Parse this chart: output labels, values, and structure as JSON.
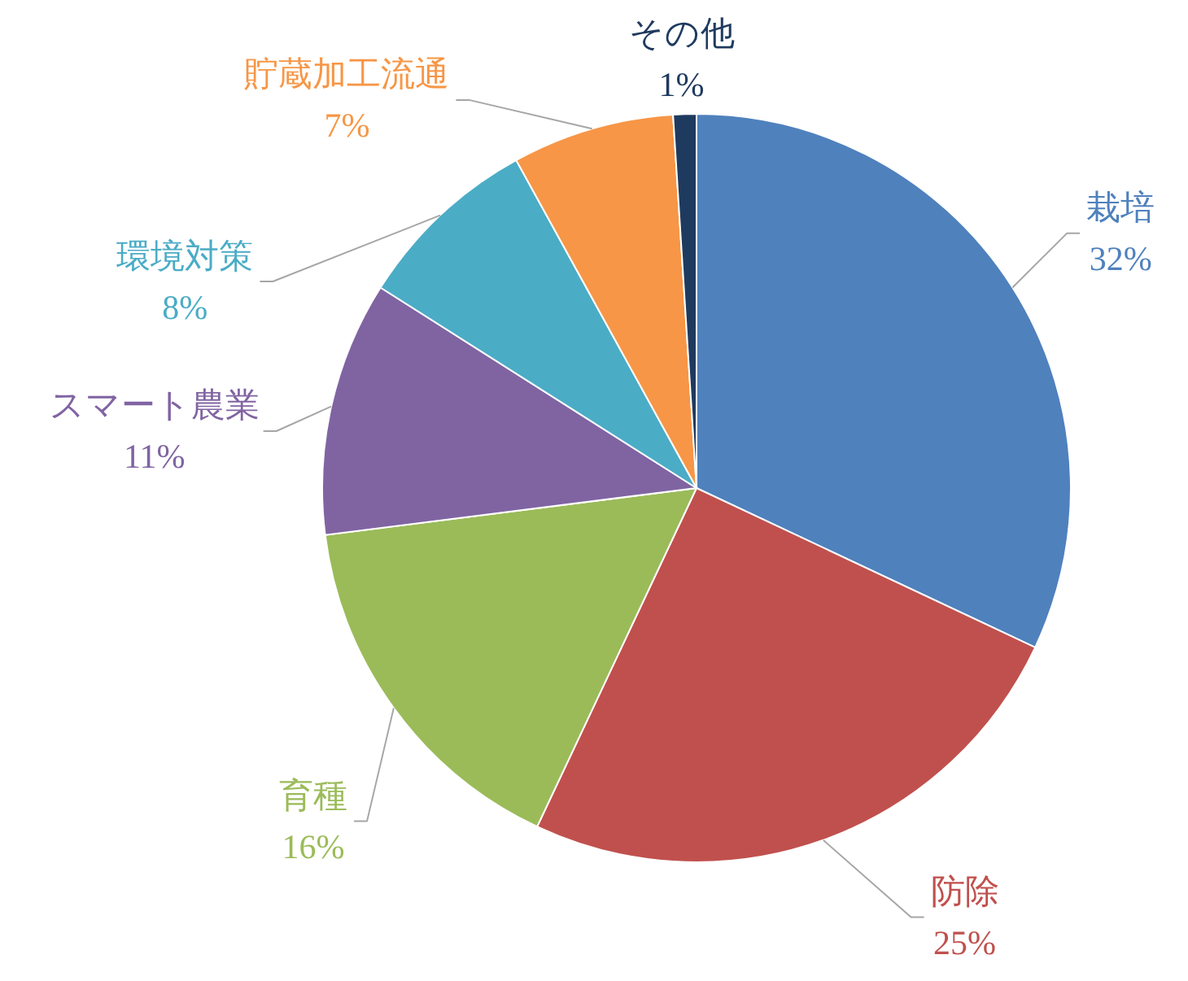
{
  "chart_data": {
    "type": "pie",
    "categories": [
      "栽培",
      "防除",
      "育種",
      "スマート農業",
      "環境対策",
      "貯蔵加工流通",
      "その他"
    ],
    "values": [
      32,
      25,
      16,
      11,
      8,
      7,
      1
    ],
    "value_labels": [
      "32%",
      "25%",
      "16%",
      "11%",
      "8%",
      "7%",
      "1%"
    ],
    "colors": [
      "#4f81bd",
      "#c0504d",
      "#9bbb59",
      "#8064a2",
      "#4bacc6",
      "#f79646",
      "#1f3a5f"
    ]
  }
}
